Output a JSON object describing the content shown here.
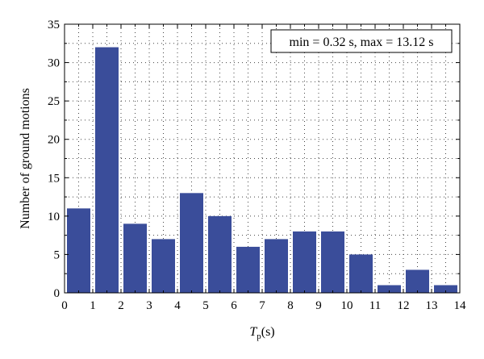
{
  "chart_data": {
    "type": "bar",
    "bin_edges": [
      0,
      1,
      2,
      3,
      4,
      5,
      6,
      7,
      8,
      9,
      10,
      11,
      12,
      13,
      14
    ],
    "values": [
      11,
      32,
      9,
      7,
      13,
      10,
      6,
      7,
      8,
      8,
      5,
      1,
      3,
      1
    ],
    "xlabel_main": "T",
    "xlabel_sub": "p",
    "xlabel_unit": "(s)",
    "ylabel": "Number of ground motions",
    "xlim": [
      0,
      14
    ],
    "ylim": [
      0,
      35
    ],
    "xticks": [
      0,
      1,
      2,
      3,
      4,
      5,
      6,
      7,
      8,
      9,
      10,
      11,
      12,
      13,
      14
    ],
    "yticks": [
      0,
      5,
      10,
      15,
      20,
      25,
      30,
      35
    ],
    "annotation": "min = 0.32 s, max = 13.12 s",
    "annotation_position": "top-right",
    "grid": true,
    "bar_color": "#3a4d9a"
  }
}
